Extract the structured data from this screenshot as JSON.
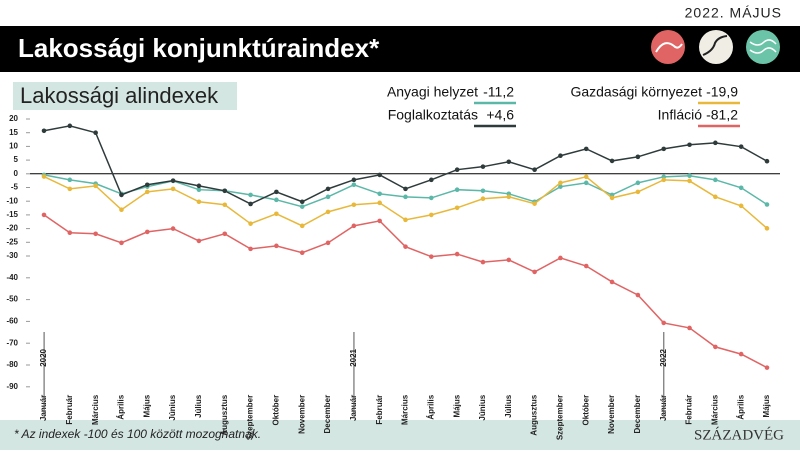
{
  "chart_data": {
    "type": "line",
    "date": "2022. MÁJUS",
    "title": "Lakossági konjunktúraindex*",
    "subtitle": "Lakossági alindexek",
    "footnote": "* Az indexek -100 és 100 között mozoghatnak.",
    "brand": "SZÁZADVÉG",
    "categories": [
      "Január",
      "Február",
      "Március",
      "Április",
      "Május",
      "Június",
      "Július",
      "Augusztus",
      "Szeptember",
      "Október",
      "November",
      "December",
      "Január",
      "Február",
      "Március",
      "Április",
      "Május",
      "Június",
      "Július",
      "Augusztus",
      "Szeptember",
      "Október",
      "November",
      "December",
      "Január",
      "Február",
      "Március",
      "Április",
      "Május"
    ],
    "year_labels": [
      "2020",
      "2021",
      "2022"
    ],
    "ylim": [
      -90,
      20
    ],
    "yticks": [
      20,
      15,
      10,
      5,
      0,
      -5,
      -10,
      -15,
      -20,
      -25,
      -30,
      -40,
      -50,
      -60,
      -70,
      -80,
      -90
    ],
    "series": [
      {
        "name": "Anyagi helyzet",
        "color": "#5bb8a8",
        "latest_label": "-11,2",
        "values": [
          -0.4,
          -2.2,
          -3.6,
          -7.3,
          -4.7,
          -2.6,
          -5.8,
          -6.2,
          -7.7,
          -9.5,
          -12,
          -8.4,
          -4,
          -7.3,
          -8.4,
          -8.8,
          -5.8,
          -6.2,
          -7.3,
          -10.2,
          -4.7,
          -3.3,
          -7.7,
          -3.3,
          -1.1,
          -0.7,
          -2.2,
          -5.1,
          -11.2
        ]
      },
      {
        "name": "Foglalkoztatás",
        "color": "#2f3b3b",
        "latest_label": "+4,6",
        "values": [
          15.7,
          17.5,
          15,
          -7.7,
          -4,
          -2.5,
          -4.4,
          -6.2,
          -11,
          -6.6,
          -10.2,
          -5.5,
          -2.2,
          -0.4,
          -5.5,
          -2.2,
          1.5,
          2.6,
          4.4,
          1.5,
          6.6,
          9.1,
          4.7,
          6.2,
          9.1,
          10.6,
          11.3,
          9.9,
          4.6
        ]
      },
      {
        "name": "Gazdasági környezet",
        "color": "#e8b83a",
        "latest_label": "-19,9",
        "values": [
          -1,
          -5.5,
          -4.4,
          -13.1,
          -6.6,
          -5.5,
          -10.2,
          -11.3,
          -18.2,
          -14.6,
          -19,
          -13.9,
          -11.3,
          -10.6,
          -16.8,
          -15,
          -12.4,
          -9.1,
          -8.4,
          -10.9,
          -3.3,
          -1.1,
          -8.8,
          -6.6,
          -2.2,
          -2.6,
          -8.4,
          -11.7,
          -19.9
        ]
      },
      {
        "name": "Infláció",
        "color": "#e06464",
        "latest_label": "-81,2",
        "values": [
          -15,
          -21.5,
          -21.9,
          -25.2,
          -21.2,
          -20,
          -24.5,
          -21.9,
          -27.4,
          -26.3,
          -28.8,
          -25.2,
          -19,
          -17.2,
          -26.6,
          -30.3,
          -29.3,
          -32.8,
          -31.8,
          -37.3,
          -30.9,
          -34.6,
          -41.9,
          -47.9,
          -60.7,
          -63,
          -71.7,
          -75,
          -81.2
        ]
      }
    ]
  }
}
